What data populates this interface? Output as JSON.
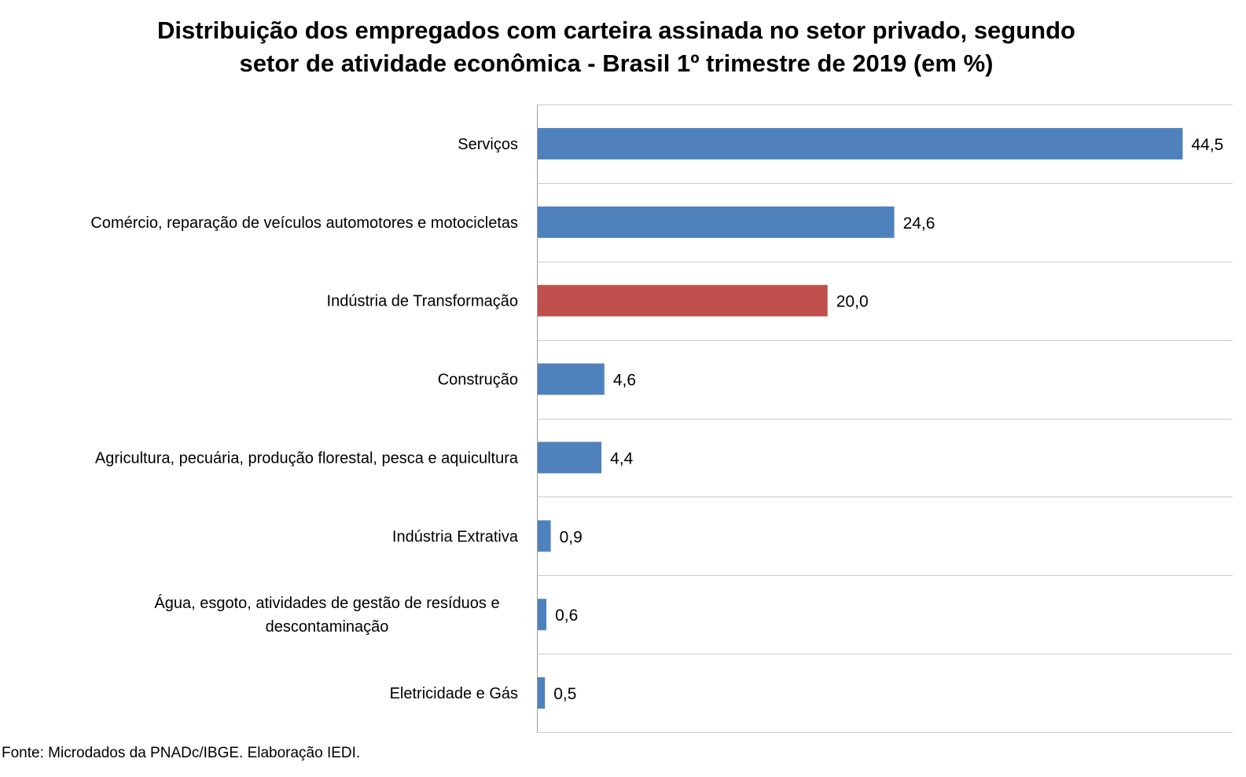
{
  "chart_data": {
    "type": "bar",
    "orientation": "horizontal",
    "title_lines": [
      "Distribuição dos empregados com carteira assinada no setor privado, segundo",
      "setor de atividade econômica - Brasil 1º trimestre de 2019 (em %)"
    ],
    "categories": [
      [
        "Serviços"
      ],
      [
        "Comércio, reparação de veículos automotores e motocicletas"
      ],
      [
        "Indústria de Transformação"
      ],
      [
        "Construção"
      ],
      [
        "Agricultura, pecuária, produção florestal, pesca e aquicultura"
      ],
      [
        "Indústria Extrativa"
      ],
      [
        "Água, esgoto, atividades de gestão de resíduos e",
        "descontaminação"
      ],
      [
        "Eletricidade e Gás"
      ]
    ],
    "values": [
      44.5,
      24.6,
      20.0,
      4.6,
      4.4,
      0.9,
      0.6,
      0.5
    ],
    "value_labels": [
      "44,5",
      "24,6",
      "20,0",
      "4,6",
      "4,4",
      "0,9",
      "0,6",
      "0,5"
    ],
    "highlight_index": 2,
    "colors": {
      "default": "#4f81bd",
      "highlight": "#c0504d",
      "gridline": "#c8c8c8",
      "axis": "#a0a0a0"
    },
    "xlim": [
      0,
      48
    ],
    "grid": true,
    "legend": "none"
  },
  "source": "Fonte: Microdados da PNADc/IBGE. Elaboração IEDI."
}
